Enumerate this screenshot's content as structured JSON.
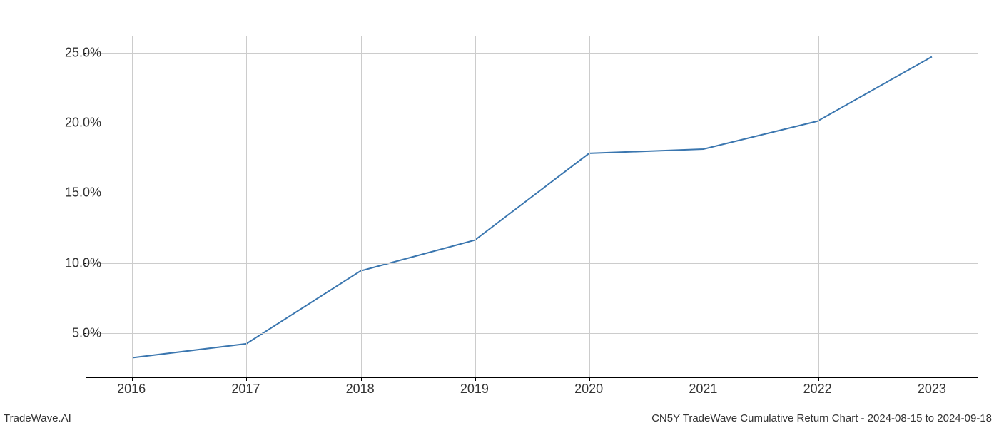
{
  "chart": {
    "type": "line",
    "x_values": [
      2016,
      2017,
      2018,
      2019,
      2020,
      2021,
      2022,
      2023
    ],
    "y_values": [
      3.2,
      4.2,
      9.4,
      11.6,
      17.8,
      18.1,
      20.1,
      24.7
    ],
    "x_tick_labels": [
      "2016",
      "2017",
      "2018",
      "2019",
      "2020",
      "2021",
      "2022",
      "2023"
    ],
    "y_tick_labels": [
      "5.0%",
      "10.0%",
      "15.0%",
      "20.0%",
      "25.0%"
    ],
    "y_tick_values": [
      5,
      10,
      15,
      20,
      25
    ],
    "xlim": [
      2015.6,
      2023.4
    ],
    "ylim": [
      1.8,
      26.2
    ],
    "line_color": "#3a76af",
    "line_width": 2,
    "grid_color": "#cccccc",
    "background_color": "#ffffff",
    "axis_color": "#000000",
    "tick_fontsize": 18,
    "footer_fontsize": 15
  },
  "footer": {
    "left": "TradeWave.AI",
    "right": "CN5Y TradeWave Cumulative Return Chart - 2024-08-15 to 2024-09-18"
  }
}
